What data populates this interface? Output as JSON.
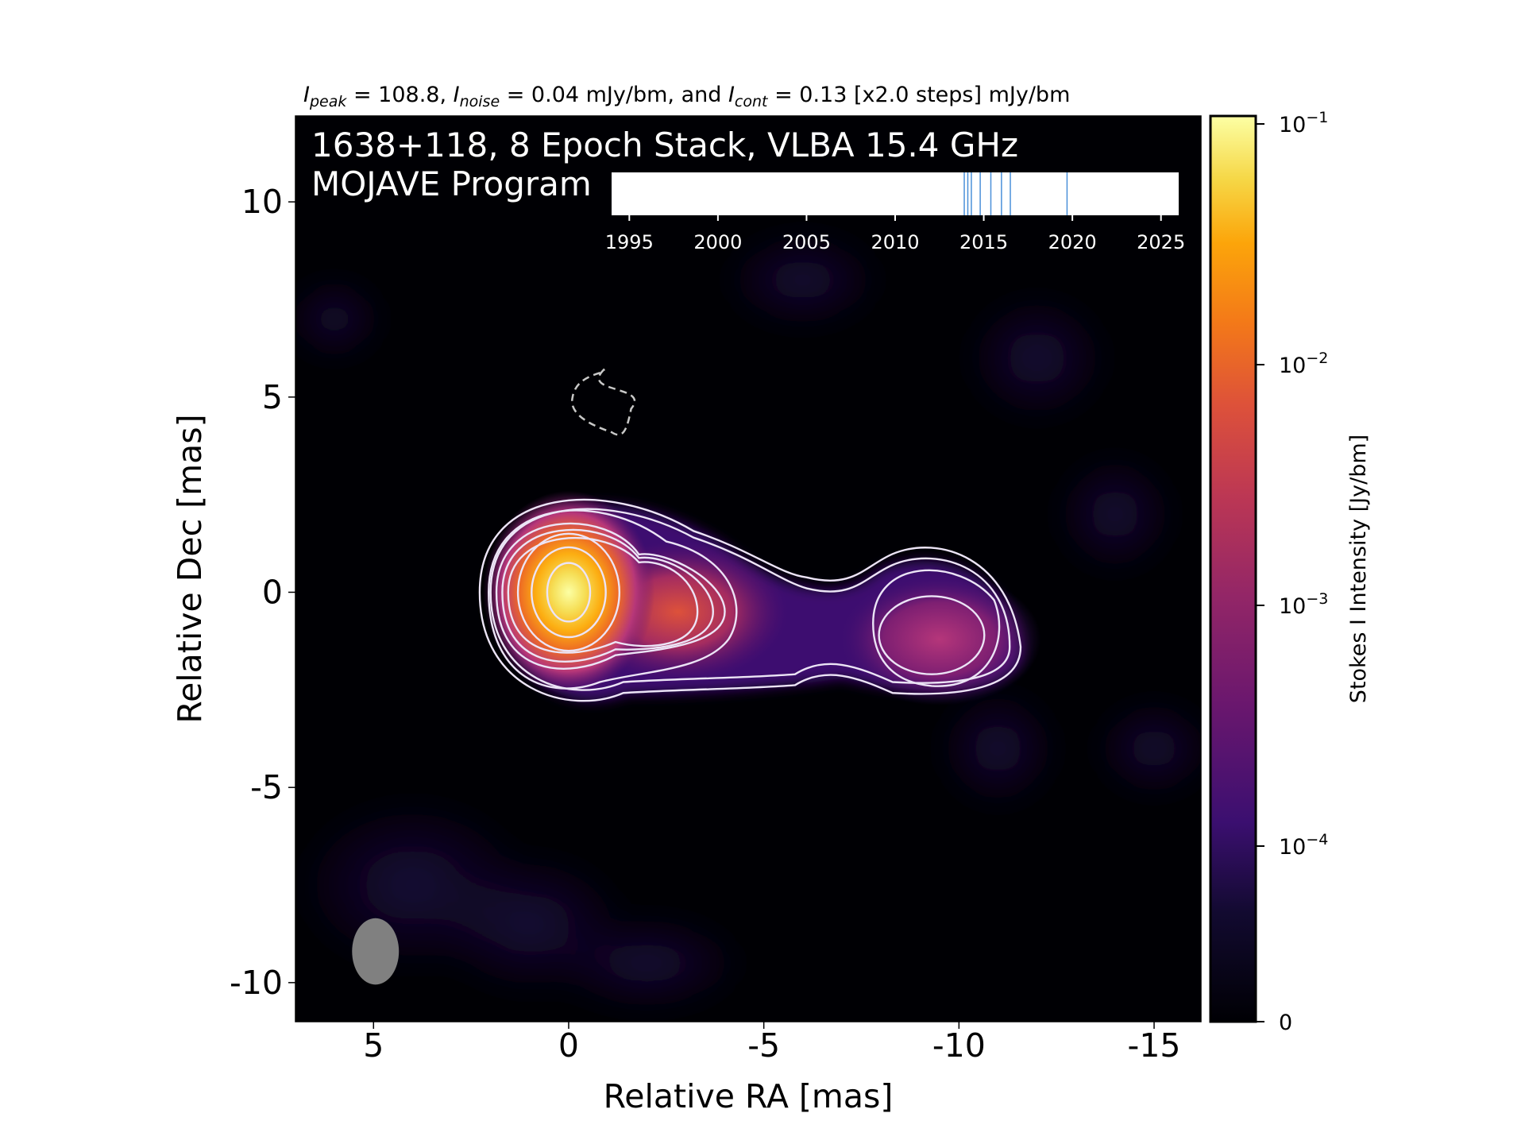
{
  "chart_data": {
    "type": "heatmap",
    "title_line": {
      "i_peak": "I",
      "i_peak_sub": "peak",
      "i_peak_text": " = 108.8, ",
      "i_noise": "I",
      "i_noise_sub": "noise",
      "i_noise_text": " = 0.04 mJy/bm, and ",
      "i_cont": "I",
      "i_cont_sub": "cont",
      "i_cont_text": " = 0.13 [x2.0 steps] mJy/bm"
    },
    "annotation_line1": "1638+118, 8 Epoch Stack, VLBA 15.4 GHz",
    "annotation_line2": "MOJAVE Program",
    "xlabel": "Relative RA [mas]",
    "ylabel": "Relative Dec [mas]",
    "xlim": [
      7,
      -16.2
    ],
    "ylim": [
      -11,
      12.2
    ],
    "xticks": [
      5,
      0,
      -5,
      -10,
      -15
    ],
    "xtick_labels": [
      "5",
      "0",
      "-5",
      "-10",
      "-15"
    ],
    "yticks": [
      10,
      5,
      0,
      -5,
      -10
    ],
    "ytick_labels": [
      "10",
      "5",
      "0",
      "-5",
      "-10"
    ],
    "colormap": "inferno",
    "colorbar": {
      "label": "Stokes I Intensity [Jy/bm]",
      "scale": "log",
      "ticks": [
        0.1,
        0.01,
        0.001,
        0.0001,
        0
      ],
      "tick_labels": [
        {
          "base": "10",
          "exp": "−1"
        },
        {
          "base": "10",
          "exp": "−2"
        },
        {
          "base": "10",
          "exp": "−3"
        },
        {
          "base": "10",
          "exp": "−4"
        },
        {
          "base": "0",
          "exp": ""
        }
      ]
    },
    "components": [
      {
        "ra": 0,
        "dec": 0,
        "peak_jy_bm": 0.1088
      },
      {
        "ra": -2.8,
        "dec": -0.5,
        "peak_jy_bm": 0.006
      },
      {
        "ra": -9.5,
        "dec": -1.2,
        "peak_jy_bm": 0.0015
      }
    ],
    "contour_levels_mjy_bm": [
      0.13,
      0.26,
      0.52,
      1.04,
      2.08,
      4.16,
      8.32,
      16.64,
      33.28,
      66.56
    ],
    "negative_contour": {
      "ra": [
        -0.9,
        -1.6,
        -1.1,
        -0.1
      ],
      "dec": [
        5.7,
        4.7,
        4.1,
        5.0
      ]
    },
    "beam": {
      "ra": 4.95,
      "dec": -9.2,
      "major_mas": 1.7,
      "minor_mas": 1.2
    },
    "epoch_timeline": {
      "xlim": [
        1994,
        2026
      ],
      "ticks": [
        1995,
        2000,
        2005,
        2010,
        2015,
        2020,
        2025
      ],
      "tick_labels": [
        "1995",
        "2000",
        "2005",
        "2010",
        "2015",
        "2020",
        "2025"
      ],
      "epochs": [
        2013.9,
        2014.1,
        2014.3,
        2014.8,
        2015.4,
        2016.0,
        2016.5,
        2019.7
      ],
      "epoch_color": "#4a90d9"
    },
    "colors": {
      "background": "#000004",
      "contour": "#ece4f6",
      "negative_contour": "#c8c8c8",
      "beam": "#808080"
    }
  }
}
